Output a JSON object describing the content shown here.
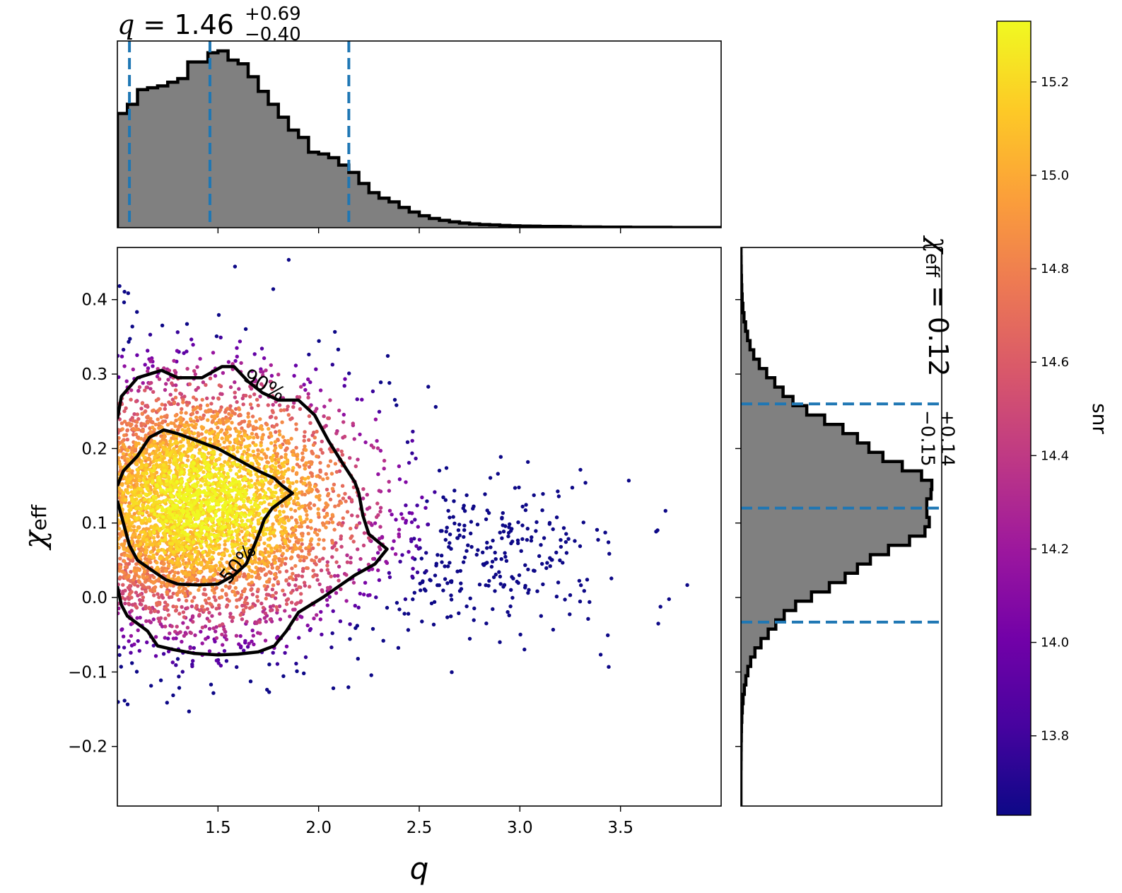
{
  "chart_data": [
    {
      "panel": "joint",
      "type": "scatter",
      "xlabel": "q",
      "ylabel_symbol": "χ",
      "ylabel_sub": "eff",
      "xlim": [
        1.0,
        4.0
      ],
      "ylim": [
        -0.28,
        0.47
      ],
      "x_ticks": [
        1.5,
        2.0,
        2.5,
        3.0,
        3.5
      ],
      "x_tick_labels": [
        "1.5",
        "2.0",
        "2.5",
        "3.0",
        "3.5"
      ],
      "y_ticks": [
        -0.2,
        -0.1,
        0.0,
        0.1,
        0.2,
        0.3,
        0.4
      ],
      "y_tick_labels": [
        "−0.2",
        "−0.1",
        "0.0",
        "0.1",
        "0.2",
        "0.3",
        "0.4"
      ],
      "point_color_variable": "snr",
      "point_density_model": {
        "core": {
          "q_mode": 1.4,
          "q_sigma_low": 0.3,
          "q_sigma_high": 0.38,
          "chi_mean": 0.12,
          "chi_sigma": 0.085
        },
        "tail": {
          "q_mean": 2.85,
          "q_sigma": 0.35,
          "chi_mean": 0.05,
          "chi_sigma": 0.05,
          "weight": 0.07
        },
        "approx_points": 5000
      },
      "contours": [
        {
          "label": "90%",
          "points": [
            [
              1.0,
              0.24
            ],
            [
              1.02,
              0.27
            ],
            [
              1.1,
              0.295
            ],
            [
              1.22,
              0.305
            ],
            [
              1.3,
              0.295
            ],
            [
              1.42,
              0.295
            ],
            [
              1.52,
              0.31
            ],
            [
              1.58,
              0.31
            ],
            [
              1.65,
              0.29
            ],
            [
              1.72,
              0.275
            ],
            [
              1.8,
              0.265
            ],
            [
              1.9,
              0.265
            ],
            [
              1.98,
              0.245
            ],
            [
              2.05,
              0.21
            ],
            [
              2.12,
              0.18
            ],
            [
              2.18,
              0.155
            ],
            [
              2.2,
              0.14
            ],
            [
              2.22,
              0.11
            ],
            [
              2.25,
              0.085
            ],
            [
              2.34,
              0.065
            ],
            [
              2.28,
              0.045
            ],
            [
              2.18,
              0.03
            ],
            [
              2.1,
              0.015
            ],
            [
              2.02,
              0.0
            ],
            [
              1.96,
              -0.01
            ],
            [
              1.9,
              -0.02
            ],
            [
              1.84,
              -0.045
            ],
            [
              1.78,
              -0.065
            ],
            [
              1.7,
              -0.073
            ],
            [
              1.6,
              -0.076
            ],
            [
              1.5,
              -0.077
            ],
            [
              1.38,
              -0.075
            ],
            [
              1.28,
              -0.07
            ],
            [
              1.2,
              -0.065
            ],
            [
              1.15,
              -0.045
            ],
            [
              1.1,
              -0.035
            ],
            [
              1.05,
              -0.025
            ],
            [
              1.02,
              -0.01
            ],
            [
              1.0,
              0.015
            ]
          ]
        },
        {
          "label": "50%",
          "points": [
            [
              1.0,
              0.15
            ],
            [
              1.03,
              0.17
            ],
            [
              1.1,
              0.19
            ],
            [
              1.16,
              0.215
            ],
            [
              1.23,
              0.225
            ],
            [
              1.3,
              0.22
            ],
            [
              1.4,
              0.21
            ],
            [
              1.5,
              0.2
            ],
            [
              1.6,
              0.185
            ],
            [
              1.7,
              0.17
            ],
            [
              1.78,
              0.16
            ],
            [
              1.82,
              0.15
            ],
            [
              1.87,
              0.14
            ],
            [
              1.82,
              0.13
            ],
            [
              1.77,
              0.12
            ],
            [
              1.73,
              0.105
            ],
            [
              1.71,
              0.09
            ],
            [
              1.68,
              0.07
            ],
            [
              1.64,
              0.045
            ],
            [
              1.58,
              0.03
            ],
            [
              1.5,
              0.018
            ],
            [
              1.4,
              0.017
            ],
            [
              1.3,
              0.018
            ],
            [
              1.24,
              0.024
            ],
            [
              1.18,
              0.035
            ],
            [
              1.1,
              0.05
            ],
            [
              1.06,
              0.07
            ],
            [
              1.04,
              0.09
            ],
            [
              1.02,
              0.11
            ],
            [
              1.0,
              0.13
            ]
          ]
        }
      ]
    },
    {
      "panel": "top-marginal",
      "type": "bar",
      "title_var": "q",
      "title_value": "1.46",
      "title_plus": "+0.69",
      "title_minus": "−0.40",
      "bin_start": 1.0,
      "bin_width": 0.05,
      "xlim": [
        1.0,
        4.0
      ],
      "x_ticks": [
        1.5,
        2.0,
        2.5,
        3.0,
        3.5
      ],
      "densities": [
        0.62,
        0.67,
        0.75,
        0.76,
        0.77,
        0.79,
        0.81,
        0.9,
        0.9,
        0.95,
        0.96,
        0.91,
        0.89,
        0.82,
        0.74,
        0.67,
        0.6,
        0.53,
        0.49,
        0.41,
        0.4,
        0.38,
        0.34,
        0.3,
        0.24,
        0.19,
        0.16,
        0.14,
        0.11,
        0.085,
        0.065,
        0.05,
        0.04,
        0.032,
        0.025,
        0.02,
        0.017,
        0.015,
        0.012,
        0.01,
        0.009,
        0.008,
        0.007,
        0.007,
        0.006,
        0.005,
        0.004,
        0.004,
        0.003,
        0.003,
        0.003,
        0.002,
        0.002,
        0.002,
        0.002,
        0.001,
        0.001,
        0.001,
        0.001,
        0.001
      ],
      "quantile_lines": [
        1.06,
        1.46,
        2.15
      ],
      "line_color": "#1f77b4",
      "fill_color": "#808080"
    },
    {
      "panel": "right-marginal",
      "type": "bar",
      "title_symbol": "χ",
      "title_sub": "eff",
      "title_value": "0.12",
      "title_plus": "+0.14",
      "title_minus": "−0.15",
      "ylim": [
        -0.28,
        0.47
      ],
      "y_ticks": [
        -0.2,
        -0.1,
        0.0,
        0.1,
        0.2,
        0.3,
        0.4
      ],
      "quantile_lines": [
        -0.033,
        0.12,
        0.26
      ],
      "line_color": "#1f77b4",
      "fill_color": "#808080",
      "distribution_model": {
        "mean": 0.125,
        "sigma": 0.087,
        "bin_width": 0.0125
      }
    },
    {
      "panel": "colorbar",
      "type": "heatmap",
      "label": "snr",
      "vmin": 13.63,
      "vmax": 15.33,
      "ticks": [
        13.8,
        14.0,
        14.2,
        14.4,
        14.6,
        14.8,
        15.0,
        15.2
      ],
      "tick_labels": [
        "13.8",
        "14.0",
        "14.2",
        "14.4",
        "14.6",
        "14.8",
        "15.0",
        "15.2"
      ],
      "colormap": "plasma",
      "colormap_stops": [
        "#0d0887",
        "#46039f",
        "#7201a8",
        "#9c179e",
        "#bd3786",
        "#d8576b",
        "#ed7953",
        "#fb9f3a",
        "#fdca26",
        "#f0f921"
      ]
    }
  ]
}
